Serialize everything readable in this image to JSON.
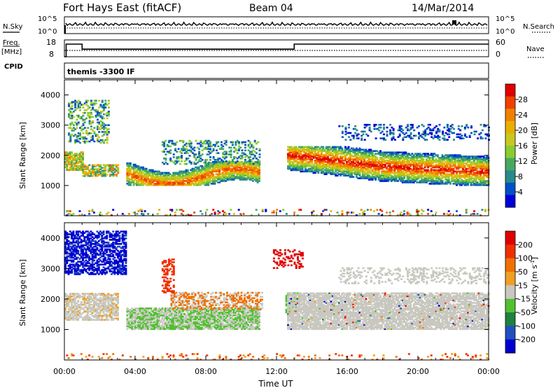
{
  "header": {
    "station": "Fort Hays East (fitACF)",
    "beam": "Beam 04",
    "date": "14/Mar/2014"
  },
  "strip_panels": {
    "nsky_label": "N.Sky",
    "nsearch_label": "N.Search",
    "nsky_ticks": [
      "10^5",
      "10^0"
    ],
    "nsearch_ticks": [
      "10^5",
      "10^0"
    ],
    "freq_label_1": "Freq.",
    "freq_label_2": "[MHz]",
    "freq_ticks": [
      "18",
      "8"
    ],
    "nave_label": "Nave",
    "nave_ticks": [
      "60",
      "0"
    ],
    "cpid_label": "CPID",
    "cpid_text": "themis -3300 IF"
  },
  "chart_data": [
    {
      "type": "line",
      "panel": "frequency",
      "x_hours": [
        0,
        0.1,
        0.1,
        1.0,
        1.0,
        13.0,
        13.0,
        24
      ],
      "freq_mhz": [
        8,
        8,
        15.5,
        15.5,
        12.5,
        12.5,
        15.5,
        15.5
      ],
      "nave_level": 12,
      "xlim": [
        0,
        24
      ],
      "ylim": [
        8,
        18
      ]
    },
    {
      "type": "heatmap",
      "panel": "power",
      "title": "",
      "ylabel": "Slant Range [km]",
      "yticks": [
        1000,
        2000,
        3000,
        4000
      ],
      "ylim": [
        0,
        4500
      ],
      "xlim": [
        0,
        24
      ],
      "colorbar_label": "Power [dB]",
      "colorbar_ticks": [
        "28",
        "24",
        "20",
        "16",
        "12",
        "8",
        "4"
      ],
      "colors": [
        "#0000d8",
        "#0050c8",
        "#2a8a8a",
        "#48a860",
        "#88cc30",
        "#c8c820",
        "#e8b000",
        "#f08000",
        "#f04000",
        "#e00000"
      ]
    },
    {
      "type": "heatmap",
      "panel": "velocity",
      "ylabel": "Slant Range [km]",
      "yticks": [
        1000,
        2000,
        3000,
        4000
      ],
      "ylim": [
        0,
        4500
      ],
      "xlim": [
        0,
        24
      ],
      "colorbar_label": "Velocity [m s",
      "colorbar_label_sup": "-1",
      "colorbar_label_end": "]",
      "colorbar_ticks": [
        "200",
        "100",
        "50",
        "15",
        "-15",
        "-50",
        "-100",
        "-200"
      ],
      "colors": [
        "#0000d0",
        "#2050c0",
        "#208040",
        "#50c030",
        "#c8c8c0",
        "#f0a020",
        "#f07000",
        "#f03000",
        "#e00000"
      ],
      "xticks": [
        "00:00",
        "04:00",
        "08:00",
        "12:00",
        "16:00",
        "20:00",
        "00:00"
      ],
      "xlabel": "Time UT"
    }
  ]
}
